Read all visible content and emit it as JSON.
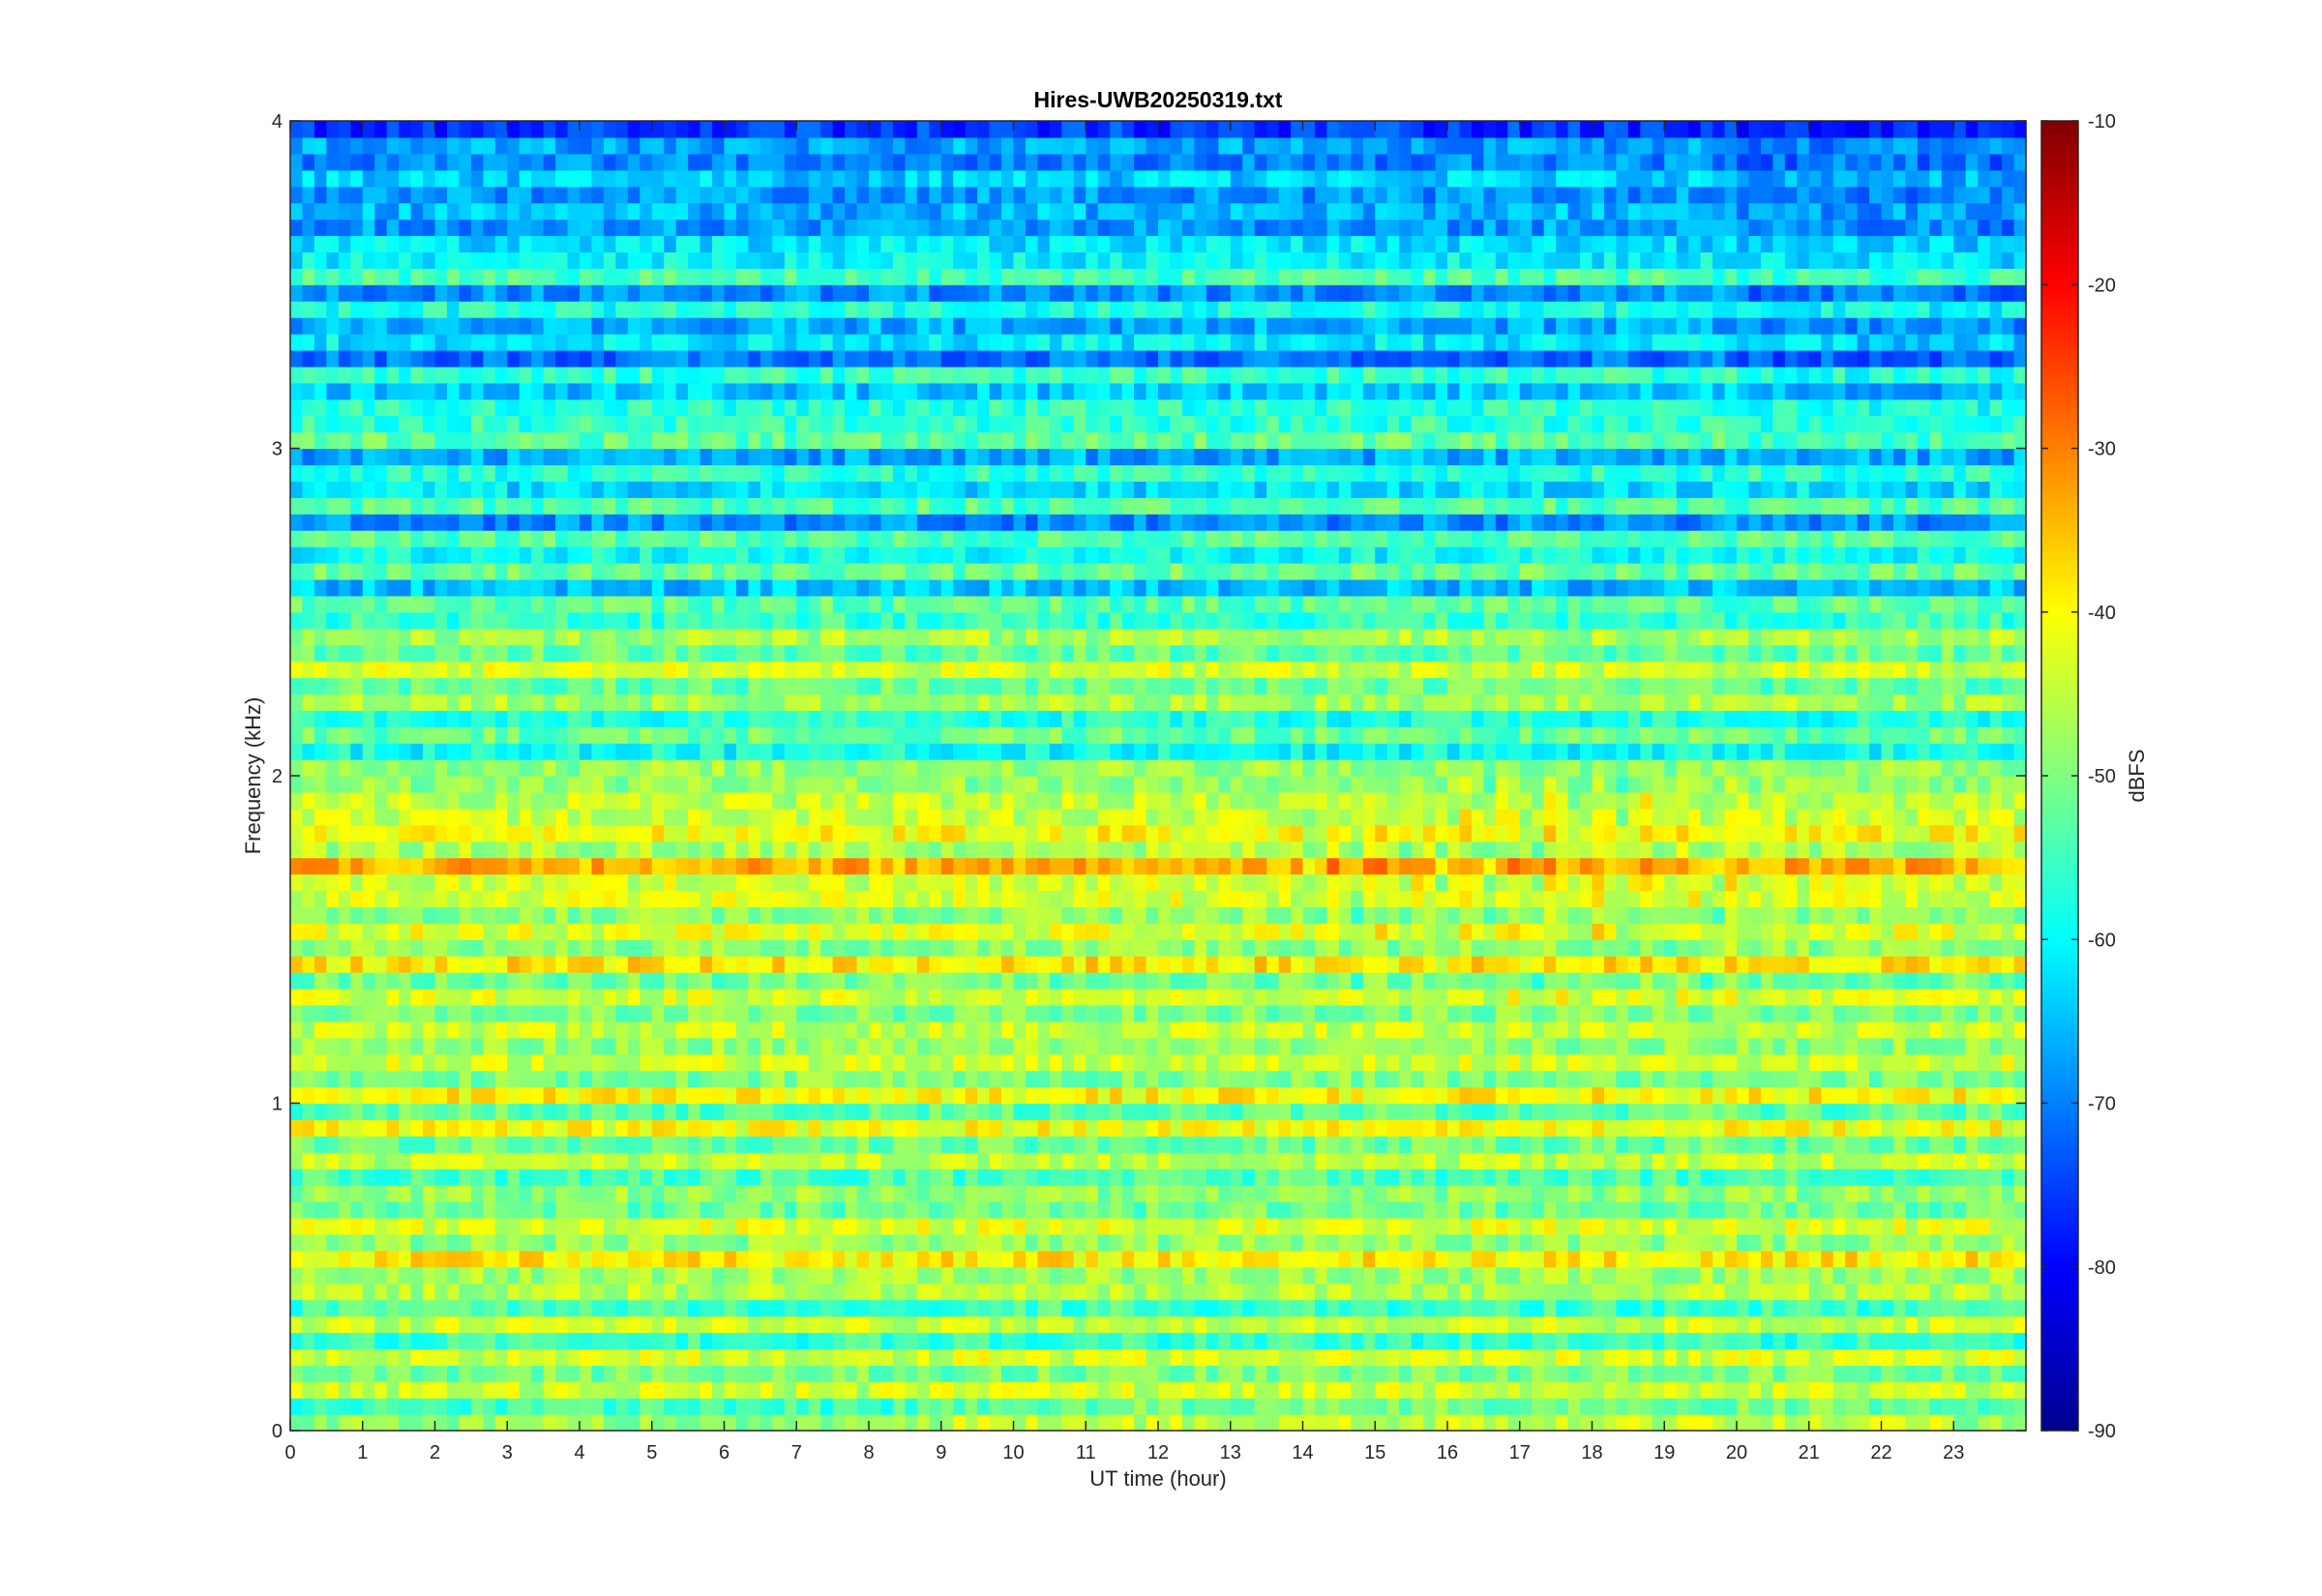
{
  "chart_data": {
    "type": "heatmap",
    "title": "Hires-UWB20250319.txt",
    "xlabel": "UT time (hour)",
    "ylabel": "Frequency (kHz)",
    "xlim": [
      0,
      24
    ],
    "ylim": [
      0,
      4
    ],
    "x_ticks": [
      "0",
      "1",
      "2",
      "3",
      "4",
      "5",
      "6",
      "7",
      "8",
      "9",
      "10",
      "11",
      "12",
      "13",
      "14",
      "15",
      "16",
      "17",
      "18",
      "19",
      "20",
      "21",
      "22",
      "23"
    ],
    "y_ticks": [
      "0",
      "1",
      "2",
      "3",
      "4"
    ],
    "colorbar": {
      "label": "dBFS",
      "range": [
        -90,
        -10
      ],
      "ticks": [
        "-90",
        "-80",
        "-70",
        "-60",
        "-50",
        "-40",
        "-30",
        "-20",
        "-10"
      ],
      "colormap": "jet",
      "stops": [
        "#00008f",
        "#0000ff",
        "#00ffff",
        "#ffff00",
        "#ff0000",
        "#800000"
      ]
    },
    "value_bands": {
      "frequency_kHz": [
        0.05,
        0.25,
        0.35,
        0.45,
        0.65,
        0.75,
        0.85,
        0.95,
        1.05,
        1.15,
        1.25,
        1.35,
        1.45,
        1.55,
        1.65,
        1.75,
        1.85,
        1.95,
        2.05,
        2.15,
        2.25,
        2.35,
        2.45,
        2.55,
        2.65,
        2.75,
        2.85,
        2.95,
        3.05,
        3.25,
        3.45,
        3.55,
        3.75,
        3.95
      ],
      "typical_dBFS": [
        -50,
        -48,
        -50,
        -46,
        -44,
        -50,
        -46,
        -48,
        -40,
        -46,
        -46,
        -50,
        -40,
        -42,
        -44,
        -38,
        -42,
        -46,
        -50,
        -54,
        -52,
        -46,
        -50,
        -58,
        -54,
        -62,
        -58,
        -60,
        -54,
        -62,
        -62,
        -58,
        -66,
        -68
      ]
    },
    "grid": false
  }
}
